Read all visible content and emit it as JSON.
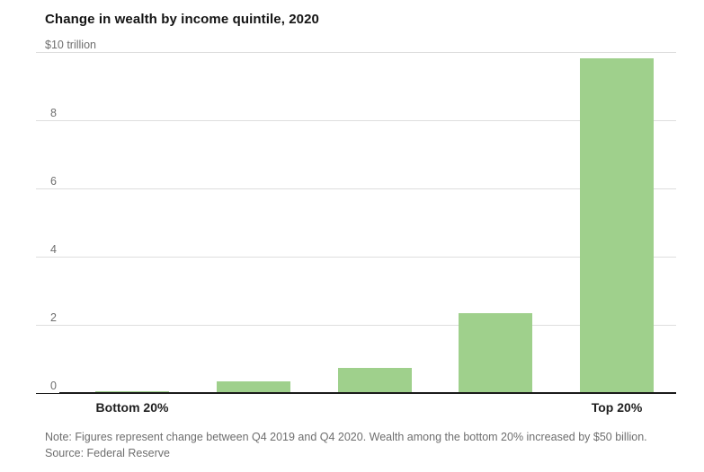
{
  "page": {
    "title": "Change in wealth by income quintile, 2020",
    "note": "Note: Figures represent change between Q4 2019 and Q4 2020. Wealth among the bottom 20% increased by $50 billion.",
    "source": "Source: Federal Reserve"
  },
  "chart_data": {
    "type": "bar",
    "title": "Change in wealth by income quintile, 2020",
    "ylabel": "$10 trillion",
    "xlabel": "",
    "categories": [
      "Bottom 20%",
      "",
      "",
      "",
      "Top 20%"
    ],
    "values": [
      0.05,
      0.35,
      0.75,
      2.35,
      9.8
    ],
    "values_unit": "trillions of dollars",
    "yticks": [
      {
        "label": "$10 trillion",
        "value": 10
      },
      {
        "label": "8",
        "value": 8
      },
      {
        "label": "6",
        "value": 6
      },
      {
        "label": "4",
        "value": 4
      },
      {
        "label": "2",
        "value": 2
      },
      {
        "label": "0",
        "value": 0
      }
    ],
    "ylim": [
      0,
      10
    ],
    "grid": true,
    "legend": false,
    "bar_color": "#9fd08c",
    "axis_color": "#1a1a1a",
    "grid_color": "#dedede"
  }
}
